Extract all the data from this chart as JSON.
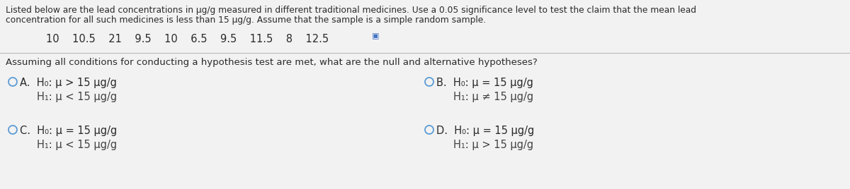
{
  "bg_color": "#f2f2f2",
  "title_line1": "Listed below are the lead concentrations in µg/g measured in different traditional medicines. Use a 0.05 significance level to test the claim that the mean lead",
  "title_line2": "concentration for all such medicines is less than 15 µg/g. Assume that the sample is a simple random sample.",
  "data_values": "10    10.5    21    9.5    10    6.5    9.5    11.5    8    12.5",
  "question_text": "Assuming all conditions for conducting a hypothesis test are met, what are the null and alternative hypotheses?",
  "option_A_H0": "A.  H₀: μ > 15 μg/g",
  "option_A_H1": "H₁: μ < 15 μg/g",
  "option_B_H0": "B.  H₀: μ = 15 μg/g",
  "option_B_H1": "H₁: μ ≠ 15 μg/g",
  "option_C_H0": "C.  H₀: μ = 15 μg/g",
  "option_C_H1": "H₁: μ < 15 μg/g",
  "option_D_H0": "D.  H₀: μ = 15 μg/g",
  "option_D_H1": "H₁: μ > 15 μg/g",
  "circle_color": "#5b9bd5",
  "text_color": "#2a2a2a",
  "h1_color": "#444444",
  "font_size_title": 8.8,
  "font_size_data": 10.5,
  "font_size_question": 9.5,
  "font_size_options": 10.5,
  "separator_color": "#bbbbbb",
  "checkbox_color": "#4472c4"
}
